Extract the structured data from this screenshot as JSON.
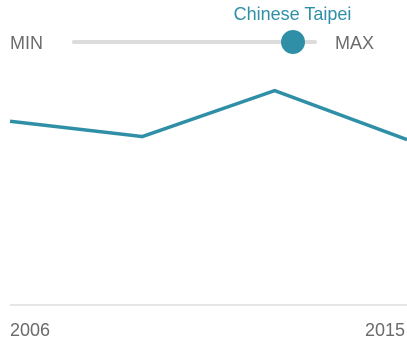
{
  "slider": {
    "label": "Chinese Taipei",
    "min_label": "MIN",
    "max_label": "MAX",
    "position": 0.9,
    "color": "#2f8fa6"
  },
  "chart_data": {
    "type": "line",
    "x": [
      2006,
      2009,
      2012,
      2015
    ],
    "series": [
      {
        "values": [
          6.0,
          5.5,
          7.0,
          5.4
        ]
      }
    ],
    "xlim": [
      2006,
      2015
    ],
    "ylim": [
      0,
      8
    ],
    "x_tick_labels": [
      "2006",
      "2015"
    ],
    "grid": false,
    "line_color": "#2f8fa6",
    "axis_color": "#cccccc"
  }
}
